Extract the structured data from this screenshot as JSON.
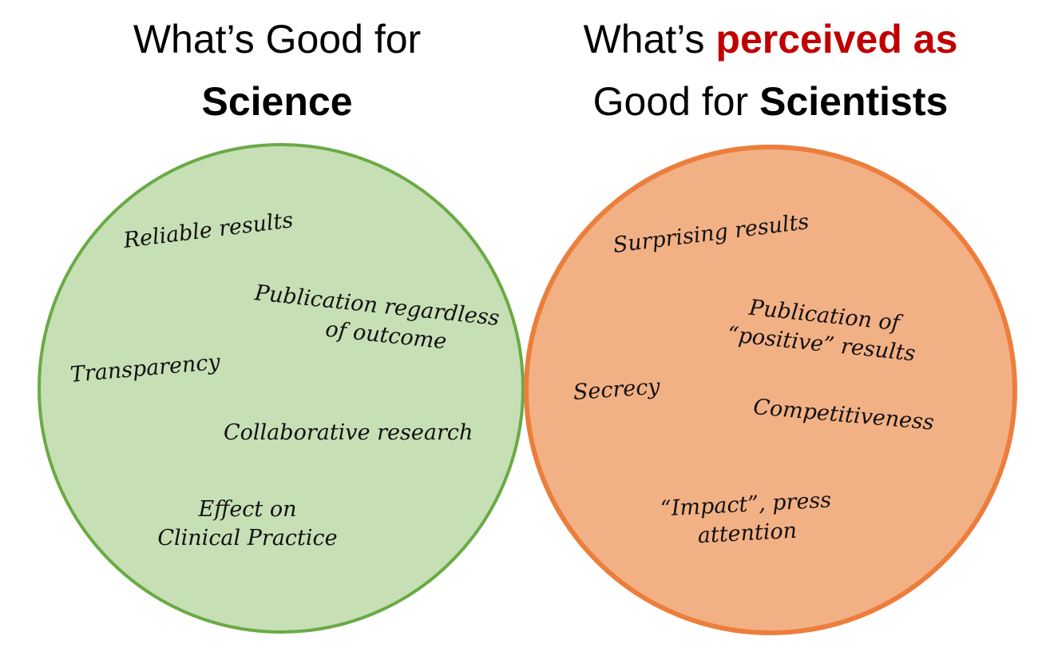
{
  "left_title": {
    "line1": "What’s Good for",
    "line2": "Science"
  },
  "right_title": {
    "line1_pre": "What’s ",
    "line1_accent": "perceived as",
    "line2_pre": "Good for ",
    "line2_bold": "Scientists"
  },
  "colors": {
    "accent": "#c00000",
    "left_fill": "#c6dfb5",
    "left_stroke": "#6aaa45",
    "right_fill": "#f2b085",
    "right_stroke": "#ec7e3c"
  },
  "left_items": {
    "reliable": "Reliable results",
    "publication_line1": "Publication regardless",
    "publication_line2": "of outcome",
    "transparency": "Transparency",
    "collaborative": "Collaborative research",
    "effect_line1": "Effect on",
    "effect_line2": "Clinical Practice"
  },
  "right_items": {
    "surprising": "Surprising results",
    "publication_line1": "Publication of",
    "publication_line2": "“positive” results",
    "secrecy": "Secrecy",
    "competitiveness": "Competitiveness",
    "impact_line1": "“Impact”, press",
    "impact_line2": "attention"
  }
}
